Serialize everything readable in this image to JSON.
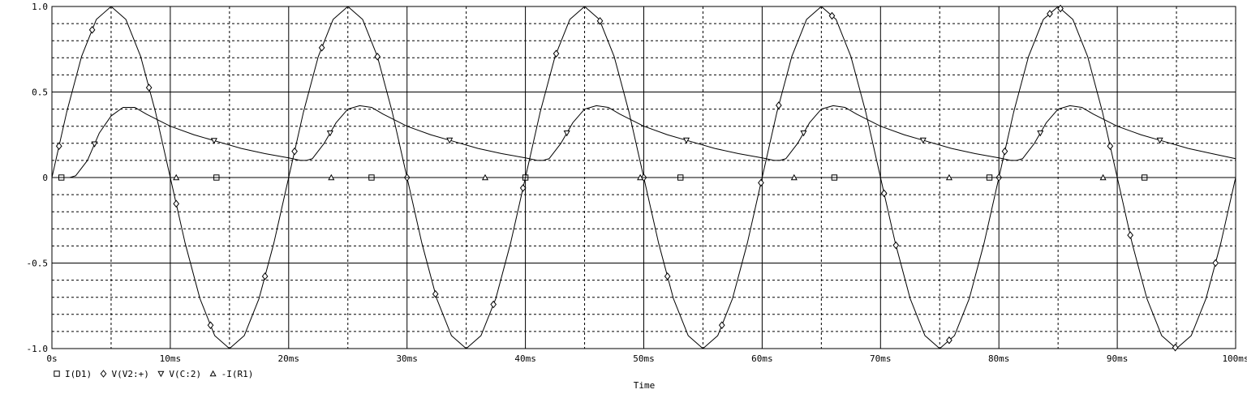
{
  "chart_data": {
    "type": "line",
    "xlabel": "Time",
    "ylabel": "",
    "title": "",
    "x_unit": "ms",
    "xlim": [
      0,
      100
    ],
    "ylim": [
      -1.0,
      1.0
    ],
    "grid": true,
    "x_ticks": [
      {
        "value": 0,
        "label": "0s"
      },
      {
        "value": 10,
        "label": "10ms"
      },
      {
        "value": 20,
        "label": "20ms"
      },
      {
        "value": 30,
        "label": "30ms"
      },
      {
        "value": 40,
        "label": "40ms"
      },
      {
        "value": 50,
        "label": "50ms"
      },
      {
        "value": 60,
        "label": "60ms"
      },
      {
        "value": 70,
        "label": "70ms"
      },
      {
        "value": 80,
        "label": "80ms"
      },
      {
        "value": 90,
        "label": "90ms"
      },
      {
        "value": 100,
        "label": "100ms"
      }
    ],
    "y_ticks": [
      {
        "value": 1.0,
        "label": "1.0"
      },
      {
        "value": 0.5,
        "label": "0.5"
      },
      {
        "value": 0,
        "label": "0"
      },
      {
        "value": -0.5,
        "label": "-0.5"
      },
      {
        "value": -1.0,
        "label": "-1.0"
      }
    ],
    "legend_position": "bottom-left",
    "series": [
      {
        "name": "I(D1)",
        "marker": "square",
        "x": [
          0,
          10,
          20,
          30,
          40,
          50,
          60,
          70,
          80,
          90,
          100
        ],
        "values": [
          0,
          0,
          0,
          0,
          0,
          0,
          0,
          0,
          0,
          0,
          0
        ],
        "marker_x": [
          0.8,
          13.9,
          27.0,
          40.0,
          53.1,
          66.1,
          79.2,
          92.3
        ]
      },
      {
        "name": "V(V2:+)",
        "marker": "diamond",
        "x": [
          0,
          1.25,
          2.5,
          3.75,
          5,
          6.25,
          7.5,
          8.75,
          10,
          11.25,
          12.5,
          13.75,
          15,
          16.25,
          17.5,
          18.75,
          20,
          21.25,
          22.5,
          23.75,
          25,
          26.25,
          27.5,
          28.75,
          30,
          31.25,
          32.5,
          33.75,
          35,
          36.25,
          37.5,
          38.75,
          40,
          41.25,
          42.5,
          43.75,
          45,
          46.25,
          47.5,
          48.75,
          50,
          51.25,
          52.5,
          53.75,
          55,
          56.25,
          57.5,
          58.75,
          60,
          61.25,
          62.5,
          63.75,
          65,
          66.25,
          67.5,
          68.75,
          70,
          71.25,
          72.5,
          73.75,
          75,
          76.25,
          77.5,
          78.75,
          80,
          81.25,
          82.5,
          83.75,
          85,
          86.25,
          87.5,
          88.75,
          90,
          91.25,
          92.5,
          93.75,
          95,
          96.25,
          97.5,
          98.75,
          100
        ],
        "values": [
          0,
          0.383,
          0.707,
          0.924,
          1.0,
          0.924,
          0.707,
          0.383,
          0,
          -0.383,
          -0.707,
          -0.924,
          -1.0,
          -0.924,
          -0.707,
          -0.383,
          0,
          0.383,
          0.707,
          0.924,
          1.0,
          0.924,
          0.707,
          0.383,
          0,
          -0.383,
          -0.707,
          -0.924,
          -1.0,
          -0.924,
          -0.707,
          -0.383,
          0,
          0.383,
          0.707,
          0.924,
          1.0,
          0.924,
          0.707,
          0.383,
          0,
          -0.383,
          -0.707,
          -0.924,
          -1.0,
          -0.924,
          -0.707,
          -0.383,
          0,
          0.383,
          0.707,
          0.924,
          1.0,
          0.924,
          0.707,
          0.383,
          0,
          -0.383,
          -0.707,
          -0.924,
          -1.0,
          -0.924,
          -0.707,
          -0.383,
          0,
          0.383,
          0.707,
          0.924,
          1.0,
          0.924,
          0.707,
          0.383,
          0,
          -0.383,
          -0.707,
          -0.924,
          -1.0,
          -0.924,
          -0.707,
          -0.383,
          0
        ],
        "marker_x": [
          0.6,
          3.4,
          8.2,
          10.5,
          13.4,
          18.0,
          20.5,
          22.8,
          27.5,
          30.0,
          32.4,
          37.3,
          39.8,
          42.6,
          46.3,
          50.0,
          52.0,
          56.6,
          59.9,
          61.4,
          65.9,
          70.3,
          71.3,
          75.8,
          80.0,
          80.5,
          84.3,
          85.2,
          89.4,
          91.1,
          94.9,
          98.3
        ]
      },
      {
        "name": "V(C:2)",
        "marker": "triangle-down",
        "x": [
          0,
          1,
          1.5,
          2,
          3,
          4,
          5,
          6,
          7,
          8,
          10,
          12,
          14,
          16,
          18,
          20,
          21,
          21.5,
          22,
          23,
          24,
          25,
          26,
          27,
          28,
          30,
          32,
          34,
          36,
          38,
          40,
          41,
          41.5,
          42,
          43,
          44,
          45,
          46,
          47,
          48,
          50,
          52,
          54,
          56,
          58,
          60,
          61,
          61.5,
          62,
          63,
          64,
          65,
          66,
          67,
          68,
          70,
          72,
          74,
          76,
          78,
          80,
          81,
          81.5,
          82,
          83,
          84,
          85,
          86,
          87,
          88,
          90,
          92,
          94,
          96,
          98,
          100
        ],
        "values": [
          0,
          0,
          0,
          0.01,
          0.1,
          0.26,
          0.36,
          0.41,
          0.41,
          0.37,
          0.3,
          0.25,
          0.21,
          0.17,
          0.14,
          0.115,
          0.1,
          0.1,
          0.11,
          0.2,
          0.32,
          0.4,
          0.42,
          0.41,
          0.37,
          0.3,
          0.25,
          0.21,
          0.17,
          0.14,
          0.115,
          0.1,
          0.1,
          0.11,
          0.2,
          0.32,
          0.4,
          0.42,
          0.41,
          0.37,
          0.3,
          0.25,
          0.21,
          0.17,
          0.14,
          0.115,
          0.1,
          0.1,
          0.11,
          0.2,
          0.32,
          0.4,
          0.42,
          0.41,
          0.37,
          0.3,
          0.25,
          0.21,
          0.17,
          0.14,
          0.115,
          0.1,
          0.1,
          0.11,
          0.2,
          0.32,
          0.4,
          0.42,
          0.41,
          0.37,
          0.3,
          0.25,
          0.21,
          0.17,
          0.14,
          0.11
        ],
        "marker_x": [
          3.6,
          13.7,
          23.5,
          33.6,
          43.5,
          53.6,
          63.5,
          73.6,
          83.5,
          93.6
        ]
      },
      {
        "name": "-I(R1)",
        "marker": "triangle-up",
        "x": [
          0,
          10,
          20,
          30,
          40,
          50,
          60,
          70,
          80,
          90,
          100
        ],
        "values": [
          0,
          0,
          0,
          0,
          0,
          0,
          0,
          0,
          0,
          0,
          0
        ],
        "marker_x": [
          10.5,
          23.6,
          36.6,
          49.7,
          62.7,
          75.8,
          88.8
        ]
      }
    ]
  }
}
